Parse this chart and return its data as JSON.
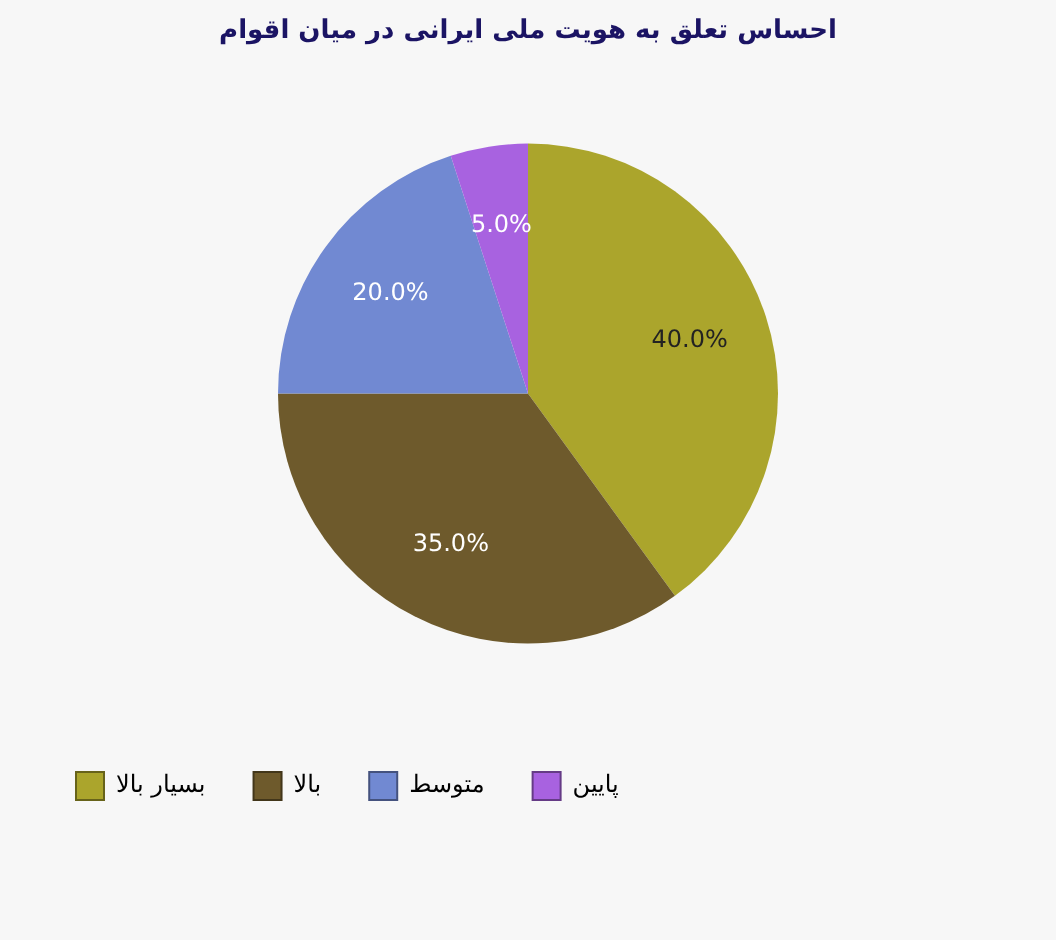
{
  "chart_data": {
    "type": "pie",
    "title": "احساس تعلق به هویت ملی ایرانی در میان اقوام",
    "categories": [
      "بسیار بالا",
      "بالا",
      "متوسط",
      "پایین"
    ],
    "values": [
      40,
      35,
      20,
      5
    ],
    "colors": [
      "#aba52c",
      "#6e5a2c",
      "#7189d2",
      "#a862e0"
    ],
    "value_labels": [
      "40.0%",
      "35.0%",
      "20.0%",
      "5.0%"
    ],
    "legend": "bottom left"
  }
}
